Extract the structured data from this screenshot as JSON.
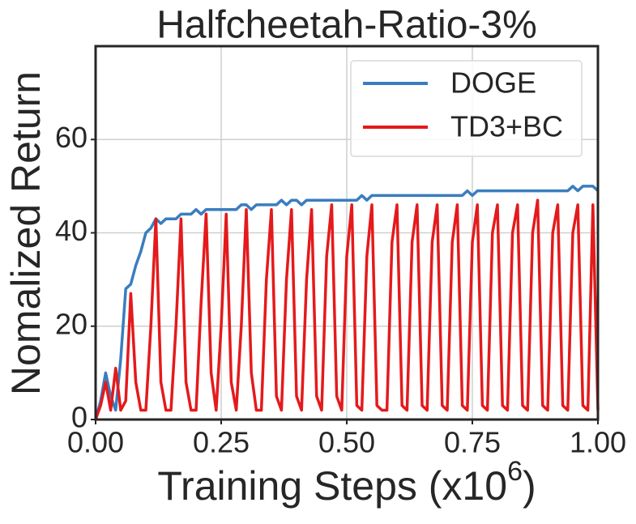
{
  "chart_data": {
    "type": "line",
    "title": "Halfcheetah-Ratio-3%",
    "xlabel": "Training Steps (x10",
    "xlabel_sup": "6",
    "xlabel_end": ")",
    "ylabel": "Nomalized Return",
    "x": [
      0,
      0.01,
      0.02,
      0.03,
      0.04,
      0.05,
      0.06,
      0.07,
      0.08,
      0.09,
      0.1,
      0.11,
      0.12,
      0.13,
      0.14,
      0.15,
      0.16,
      0.17,
      0.18,
      0.19,
      0.2,
      0.21,
      0.22,
      0.23,
      0.24,
      0.25,
      0.26,
      0.27,
      0.28,
      0.29,
      0.3,
      0.31,
      0.32,
      0.33,
      0.34,
      0.35,
      0.36,
      0.37,
      0.38,
      0.39,
      0.4,
      0.41,
      0.42,
      0.43,
      0.44,
      0.45,
      0.46,
      0.47,
      0.48,
      0.49,
      0.5,
      0.51,
      0.52,
      0.53,
      0.54,
      0.55,
      0.56,
      0.57,
      0.58,
      0.59,
      0.6,
      0.61,
      0.62,
      0.63,
      0.64,
      0.65,
      0.66,
      0.67,
      0.68,
      0.69,
      0.7,
      0.71,
      0.72,
      0.73,
      0.74,
      0.75,
      0.76,
      0.77,
      0.78,
      0.79,
      0.8,
      0.81,
      0.82,
      0.83,
      0.84,
      0.85,
      0.86,
      0.87,
      0.88,
      0.89,
      0.9,
      0.91,
      0.92,
      0.93,
      0.94,
      0.95,
      0.96,
      0.97,
      0.98,
      0.99,
      1
    ],
    "series": [
      {
        "name": "DOGE",
        "color": "#3a7dbf",
        "values": [
          0,
          4,
          10,
          5,
          2,
          13,
          28,
          29,
          33,
          36,
          40,
          41,
          43,
          42,
          43,
          43,
          43,
          44,
          44,
          44,
          45,
          44,
          45,
          45,
          45,
          45,
          45,
          45,
          45,
          46,
          46,
          45,
          46,
          46,
          46,
          46,
          46,
          47,
          46,
          47,
          47,
          46,
          47,
          47,
          47,
          47,
          47,
          47,
          47,
          47,
          47,
          47,
          47,
          48,
          47,
          48,
          48,
          48,
          48,
          48,
          48,
          48,
          48,
          48,
          48,
          48,
          48,
          48,
          48,
          48,
          48,
          48,
          48,
          48,
          49,
          48,
          49,
          49,
          49,
          49,
          49,
          49,
          49,
          49,
          49,
          49,
          49,
          49,
          49,
          49,
          49,
          49,
          49,
          49,
          49,
          50,
          49,
          50,
          50,
          50,
          49
        ]
      },
      {
        "name": "TD3+BC",
        "color": "#e41a1c",
        "values": [
          0,
          3,
          8,
          2,
          11,
          2,
          4,
          27,
          8,
          2,
          2,
          20,
          43,
          8,
          2,
          2,
          20,
          43,
          8,
          2,
          2,
          25,
          44,
          10,
          2,
          20,
          44,
          8,
          2,
          20,
          45,
          10,
          2,
          2,
          30,
          45,
          5,
          2,
          30,
          45,
          5,
          2,
          30,
          45,
          5,
          2,
          35,
          46,
          5,
          2,
          35,
          46,
          3,
          2,
          35,
          46,
          3,
          2,
          2,
          38,
          46,
          3,
          2,
          38,
          46,
          3,
          2,
          38,
          46,
          3,
          2,
          38,
          46,
          3,
          2,
          38,
          46,
          3,
          2,
          40,
          46,
          3,
          2,
          40,
          46,
          3,
          2,
          40,
          47,
          3,
          2,
          40,
          46,
          3,
          2,
          40,
          46,
          3,
          2,
          46,
          2
        ]
      }
    ],
    "xlim": [
      0,
      1
    ],
    "ylim": [
      0,
      80
    ],
    "xticks": [
      {
        "value": 0,
        "label": "0.00"
      },
      {
        "value": 0.25,
        "label": "0.25"
      },
      {
        "value": 0.5,
        "label": "0.50"
      },
      {
        "value": 0.75,
        "label": "0.75"
      },
      {
        "value": 1,
        "label": "1.00"
      }
    ],
    "yticks": [
      0,
      20,
      40,
      60
    ],
    "grid": true,
    "legend": "upper right"
  }
}
